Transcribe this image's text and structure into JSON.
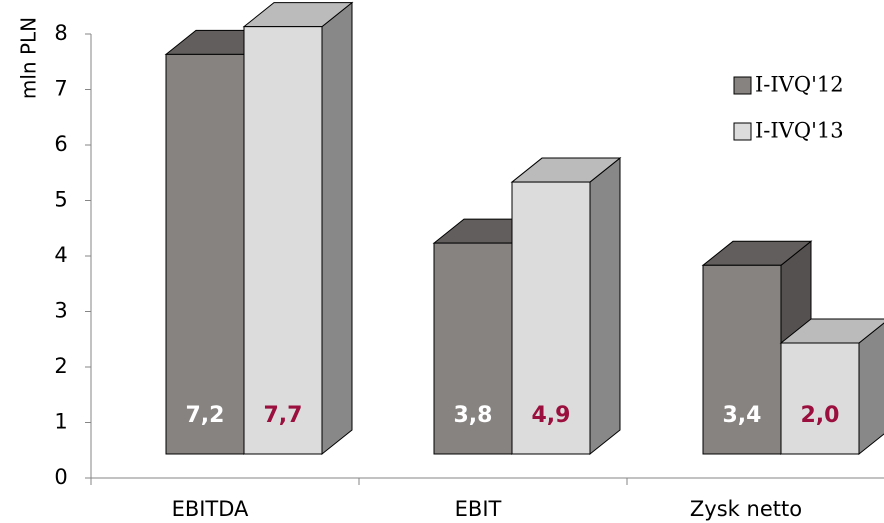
{
  "chart_data": {
    "type": "bar",
    "style": "3d-clustered-column",
    "categories": [
      "EBITDA",
      "EBIT",
      "Zysk netto"
    ],
    "series": [
      {
        "name": "I-IVQ'12",
        "values": [
          7.2,
          3.8,
          3.4
        ],
        "labels": [
          "7,2",
          "3,8",
          "3,4"
        ],
        "color": "#878381",
        "label_color": "#ffffff"
      },
      {
        "name": "I-IVQ'13",
        "values": [
          7.7,
          4.9,
          2.0
        ],
        "labels": [
          "7,7",
          "4,9",
          "2,0"
        ],
        "color": "#dcdcdc",
        "label_color": "#9a0f3e"
      }
    ],
    "ylabel": "mln PLN",
    "xlabel": "",
    "ylim": [
      0,
      8
    ],
    "yticks": [
      "0",
      "1",
      "2",
      "3",
      "4",
      "5",
      "6",
      "7",
      "8"
    ],
    "grid": false,
    "legend_position": "right"
  }
}
